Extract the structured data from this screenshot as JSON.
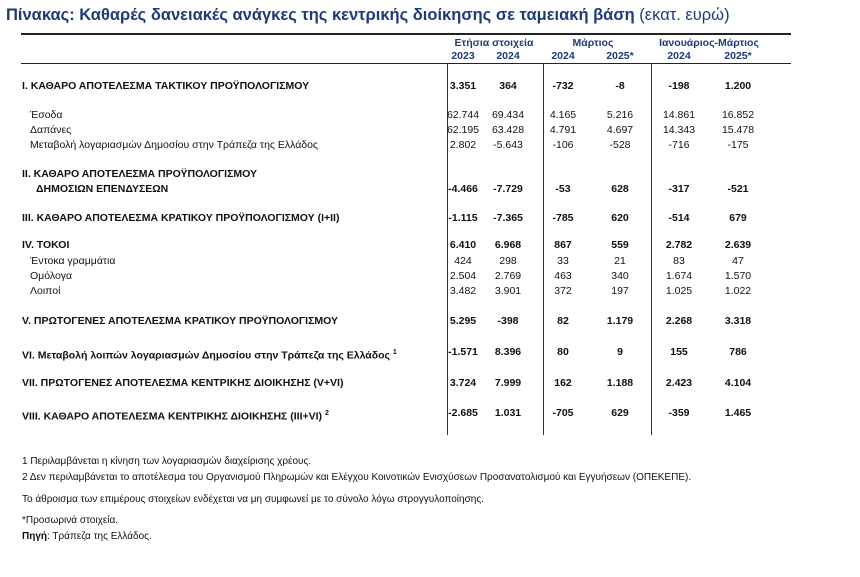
{
  "title": {
    "main": "Πίνακας: Καθαρές δανειακές ανάγκες της κεντρικής διοίκησης σε ταμειακή βάση",
    "unit": "(εκατ. ευρώ)"
  },
  "header": {
    "groups": [
      "Ετήσια στοιχεία",
      "Μάρτιος",
      "Ιανουάριος-Μάρτιος"
    ],
    "years": [
      "2023",
      "2024",
      "2024",
      "2025*",
      "2024",
      "2025*"
    ]
  },
  "rows": [
    {
      "label": "I. ΚΑΘΑΡΟ ΑΠΟΤΕΛΕΣΜΑ  ΤΑΚΤΙΚΟΥ ΠΡΟΫΠΟΛΟΓΙΣΜΟΥ",
      "values": [
        "3.351",
        "364",
        "-732",
        "-8",
        "-198",
        "1.200"
      ]
    },
    {
      "label": "Έσοδα",
      "values": [
        "62.744",
        "69.434",
        "4.165",
        "5.216",
        "14.861",
        "16.852"
      ]
    },
    {
      "label": "Δαπάνες",
      "values": [
        "62.195",
        "63.428",
        "4.791",
        "4.697",
        "14.343",
        "15.478"
      ]
    },
    {
      "label": "Μεταβολή λογαριασμών Δημοσίου στην Τράπεζα της Ελλάδος",
      "values": [
        "2.802",
        "-5.643",
        "-106",
        "-528",
        "-716",
        "-175"
      ]
    },
    {
      "label": "II. ΚΑΘΑΡΟ ΑΠΟΤΕΛΕΣΜΑ ΠΡΟΫΠΟΛΟΓΙΣΜΟΥ",
      "label2": "ΔΗΜΟΣΙΩΝ ΕΠΕΝΔΥΣΕΩΝ",
      "values": [
        "-4.466",
        "-7.729",
        "-53",
        "628",
        "-317",
        "-521"
      ]
    },
    {
      "label": "III. ΚΑΘΑΡΟ ΑΠΟΤΕΛΕΣΜΑ ΚΡΑΤΙΚΟΥ ΠΡΟΫΠΟΛΟΓΙΣΜΟΥ (I+II)",
      "values": [
        "-1.115",
        "-7.365",
        "-785",
        "620",
        "-514",
        "679"
      ]
    },
    {
      "label": "IV. ΤΟΚΟΙ",
      "values": [
        "6.410",
        "6.968",
        "867",
        "559",
        "2.782",
        "2.639"
      ]
    },
    {
      "label": "Έντοκα γραμμάτια",
      "values": [
        "424",
        "298",
        "33",
        "21",
        "83",
        "47"
      ]
    },
    {
      "label": "Ομόλογα",
      "values": [
        "2.504",
        "2.769",
        "463",
        "340",
        "1.674",
        "1.570"
      ]
    },
    {
      "label": "Λοιποί",
      "values": [
        "3.482",
        "3.901",
        "372",
        "197",
        "1.025",
        "1.022"
      ]
    },
    {
      "label": "V. ΠΡΩΤΟΓΕΝΕΣ ΑΠΟΤΕΛΕΣΜΑ  ΚΡΑΤΙΚΟΥ ΠΡΟΫΠΟΛΟΓΙΣΜΟΥ",
      "values": [
        "5.295",
        "-398",
        "82",
        "1.179",
        "2.268",
        "3.318"
      ]
    },
    {
      "label": "VI. Μεταβολή λοιπών λογαριασμών Δημοσίου στην Τράπεζα της Ελλάδος",
      "sup": "1",
      "values": [
        "-1.571",
        "8.396",
        "80",
        "9",
        "155",
        "786"
      ]
    },
    {
      "label": "VII. ΠΡΩΤΟΓΕΝΕΣ ΑΠΟΤΕΛΕΣΜΑ ΚΕΝΤΡΙΚΗΣ ΔΙΟΙΚΗΣΗΣ (V+VI)",
      "values": [
        "3.724",
        "7.999",
        "162",
        "1.188",
        "2.423",
        "4.104"
      ]
    },
    {
      "label": "VIII. ΚΑΘΑΡΟ ΑΠΟΤΕΛΕΣΜΑ ΚΕΝΤΡΙΚΗΣ ΔΙΟΙΚΗΣΗΣ (III+VI)",
      "sup": "2",
      "values": [
        "-2.685",
        "1.031",
        "-705",
        "629",
        "-359",
        "1.465"
      ]
    }
  ],
  "footnotes": [
    "1 Περιλαμβάνεται η κίνηση των λογαριασμών διαχείρισης χρέους.",
    "2 Δεν περιλαμβάνεται το αποτέλεσμα του Οργανισμού Πληρωμών και Ελέγχου Κοινοτικών Ενισχύσεων Προσανατολισμού και Εγγυήσεων (ΟΠΕΚΕΠΕ).",
    "Το άθροισμα των επιμέρους στοιχείων ενδέχεται να μη συμφωνεί με το σύνολο λόγω στρογγυλοποίησης.",
    "*Προσωρινά στοιχεία."
  ],
  "source": {
    "label": "Πηγή",
    "text": ": Τράπεζα της Ελλάδος."
  }
}
